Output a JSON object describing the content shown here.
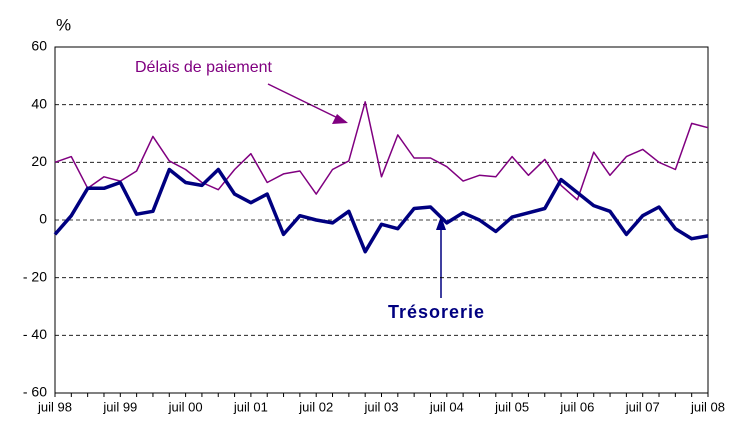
{
  "chart_data": {
    "type": "line",
    "y_unit": "%",
    "categories": [
      "juil 98",
      null,
      null,
      null,
      "juil 99",
      null,
      null,
      null,
      "juil 00",
      null,
      null,
      null,
      "juil 01",
      null,
      null,
      null,
      "juil 02",
      null,
      null,
      null,
      "juil 03",
      null,
      null,
      null,
      "juil 04",
      null,
      null,
      null,
      "juil 05",
      null,
      null,
      null,
      "juil 06",
      null,
      null,
      null,
      "juil 07",
      null,
      null,
      null,
      "juil 08"
    ],
    "series": [
      {
        "name": "Délais de paiement",
        "color": "#800080",
        "values": [
          20,
          22,
          11,
          15,
          13.5,
          17,
          29,
          20.5,
          17.5,
          13,
          10.5,
          17.5,
          23,
          13,
          16,
          17,
          9,
          17.5,
          20.5,
          41,
          15,
          29.5,
          21.5,
          21.5,
          18.5,
          13.5,
          15.5,
          15,
          22,
          15.5,
          21,
          12,
          7,
          23.5,
          15.5,
          22,
          24.5,
          20,
          17.5,
          33.5,
          32
        ]
      },
      {
        "name": "Trésorerie",
        "color": "#000080",
        "values": [
          -5,
          1.5,
          11,
          11,
          13,
          2,
          3,
          17.5,
          13,
          12,
          17.5,
          9,
          6,
          9,
          -5,
          1.5,
          0,
          -1,
          3,
          -11,
          -1.5,
          -3,
          4,
          4.5,
          -1,
          2.5,
          0,
          -4,
          1,
          2.5,
          4,
          14,
          9.5,
          5,
          3,
          -5,
          1.5,
          4.5,
          -3,
          -6.5,
          -5.5
        ]
      }
    ],
    "ylim": [
      -60,
      60
    ],
    "yticks": [
      {
        "value": -60,
        "label": "- 60"
      },
      {
        "value": -40,
        "label": "- 40"
      },
      {
        "value": -20,
        "label": "- 20"
      },
      0,
      20,
      40,
      60
    ],
    "grid": true
  }
}
